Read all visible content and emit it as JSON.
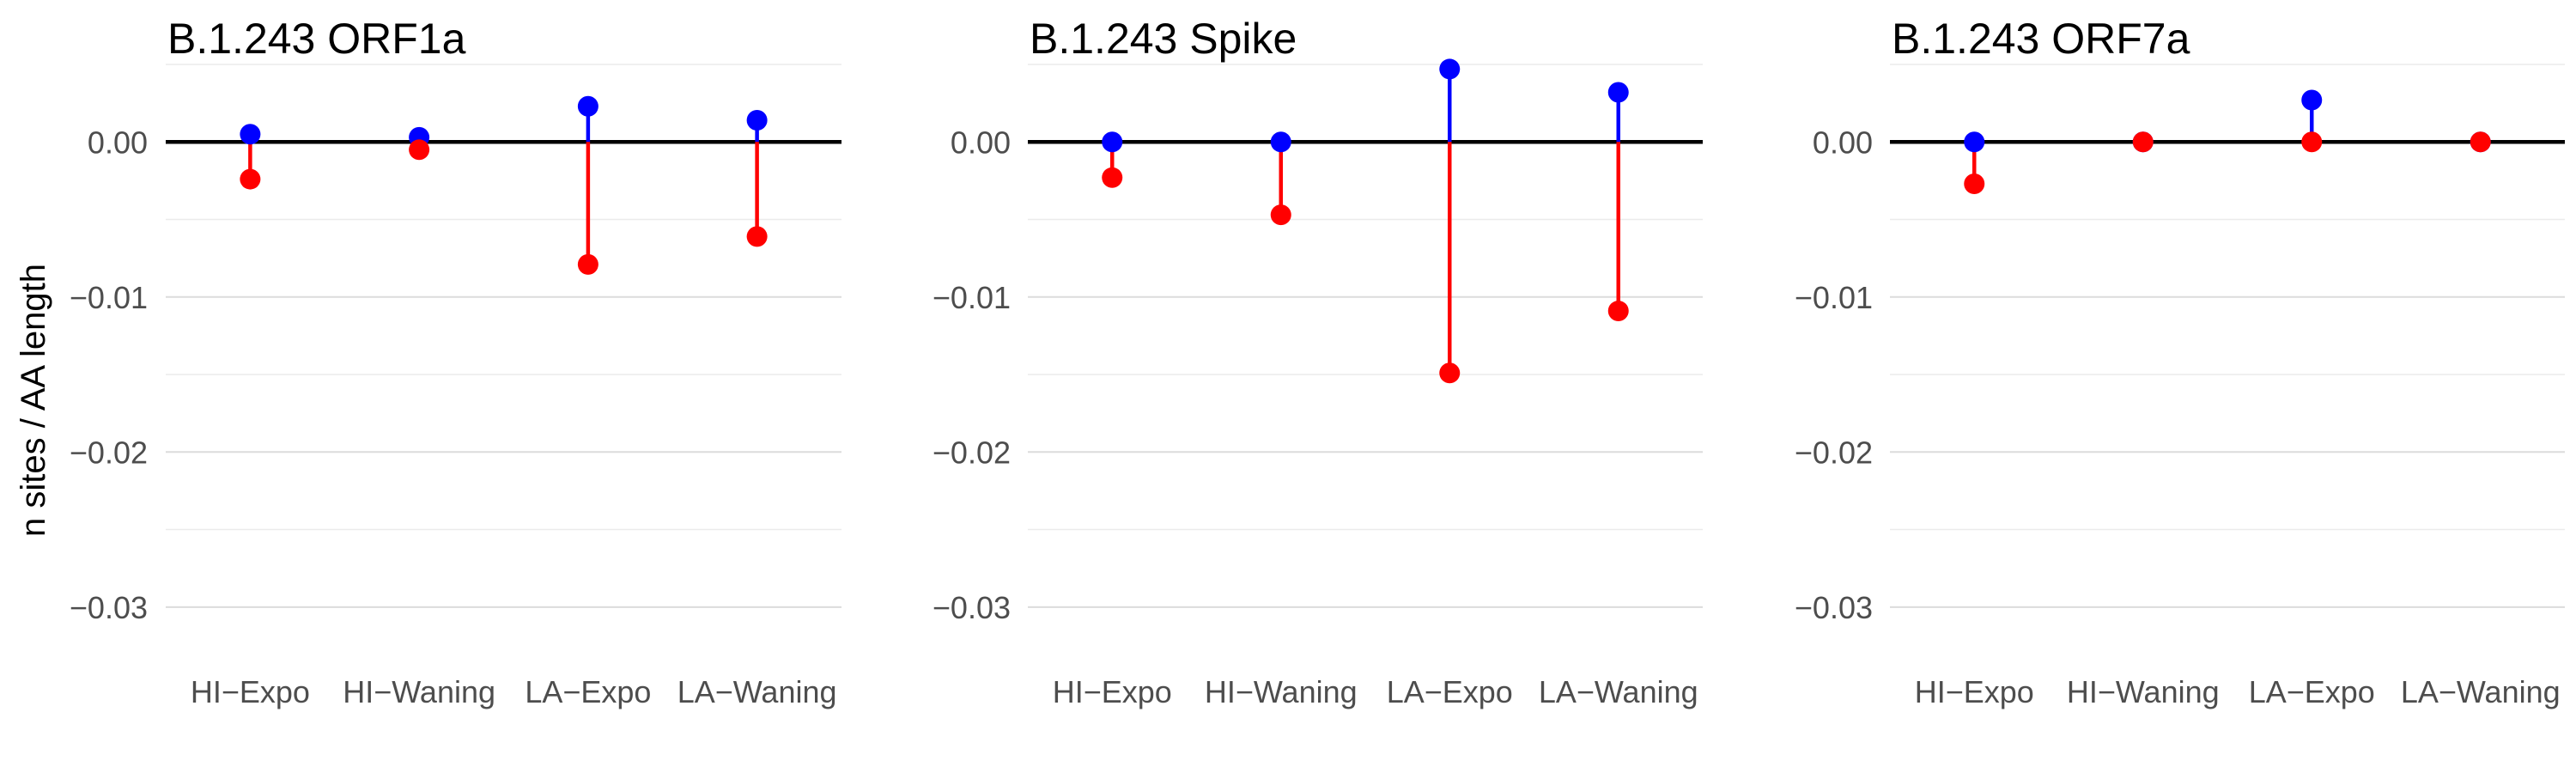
{
  "chart_data": [
    {
      "type": "lollipop",
      "title": "B.1.243 ORF1a",
      "ylabel": "n sites / AA length",
      "categories": [
        "HI−Expo",
        "HI−Waning",
        "LA−Expo",
        "LA−Waning"
      ],
      "ylim": [
        -0.0335,
        0.005
      ],
      "yticks": [
        0.0,
        -0.01,
        -0.02,
        -0.03
      ],
      "ytick_labels": [
        "0.00",
        "−0.01",
        "−0.02",
        "−0.03"
      ],
      "series": [
        {
          "color": "#0000ff",
          "values": [
            0.0005,
            0.0003,
            0.0023,
            0.0014
          ]
        },
        {
          "color": "#ff0000",
          "values": [
            -0.0024,
            -0.0005,
            -0.0079,
            -0.0061
          ]
        }
      ]
    },
    {
      "type": "lollipop",
      "title": "B.1.243 Spike",
      "categories": [
        "HI−Expo",
        "HI−Waning",
        "LA−Expo",
        "LA−Waning"
      ],
      "ylim": [
        -0.0335,
        0.005
      ],
      "yticks": [
        0.0,
        -0.01,
        -0.02,
        -0.03
      ],
      "ytick_labels": [
        "0.00",
        "−0.01",
        "−0.02",
        "−0.03"
      ],
      "series": [
        {
          "color": "#0000ff",
          "values": [
            0.0,
            0.0,
            0.0047,
            0.0032
          ]
        },
        {
          "color": "#ff0000",
          "values": [
            -0.0023,
            -0.0047,
            -0.0149,
            -0.0109
          ]
        }
      ]
    },
    {
      "type": "lollipop",
      "title": "B.1.243 ORF7a",
      "categories": [
        "HI−Expo",
        "HI−Waning",
        "LA−Expo",
        "LA−Waning"
      ],
      "ylim": [
        -0.0335,
        0.005
      ],
      "yticks": [
        0.0,
        -0.01,
        -0.02,
        -0.03
      ],
      "ytick_labels": [
        "0.00",
        "−0.01",
        "−0.02",
        "−0.03"
      ],
      "series": [
        {
          "color": "#0000ff",
          "values": [
            0.0,
            0.0,
            0.0027,
            0.0
          ]
        },
        {
          "color": "#ff0000",
          "values": [
            -0.0027,
            0.0,
            0.0,
            0.0
          ]
        }
      ]
    }
  ]
}
